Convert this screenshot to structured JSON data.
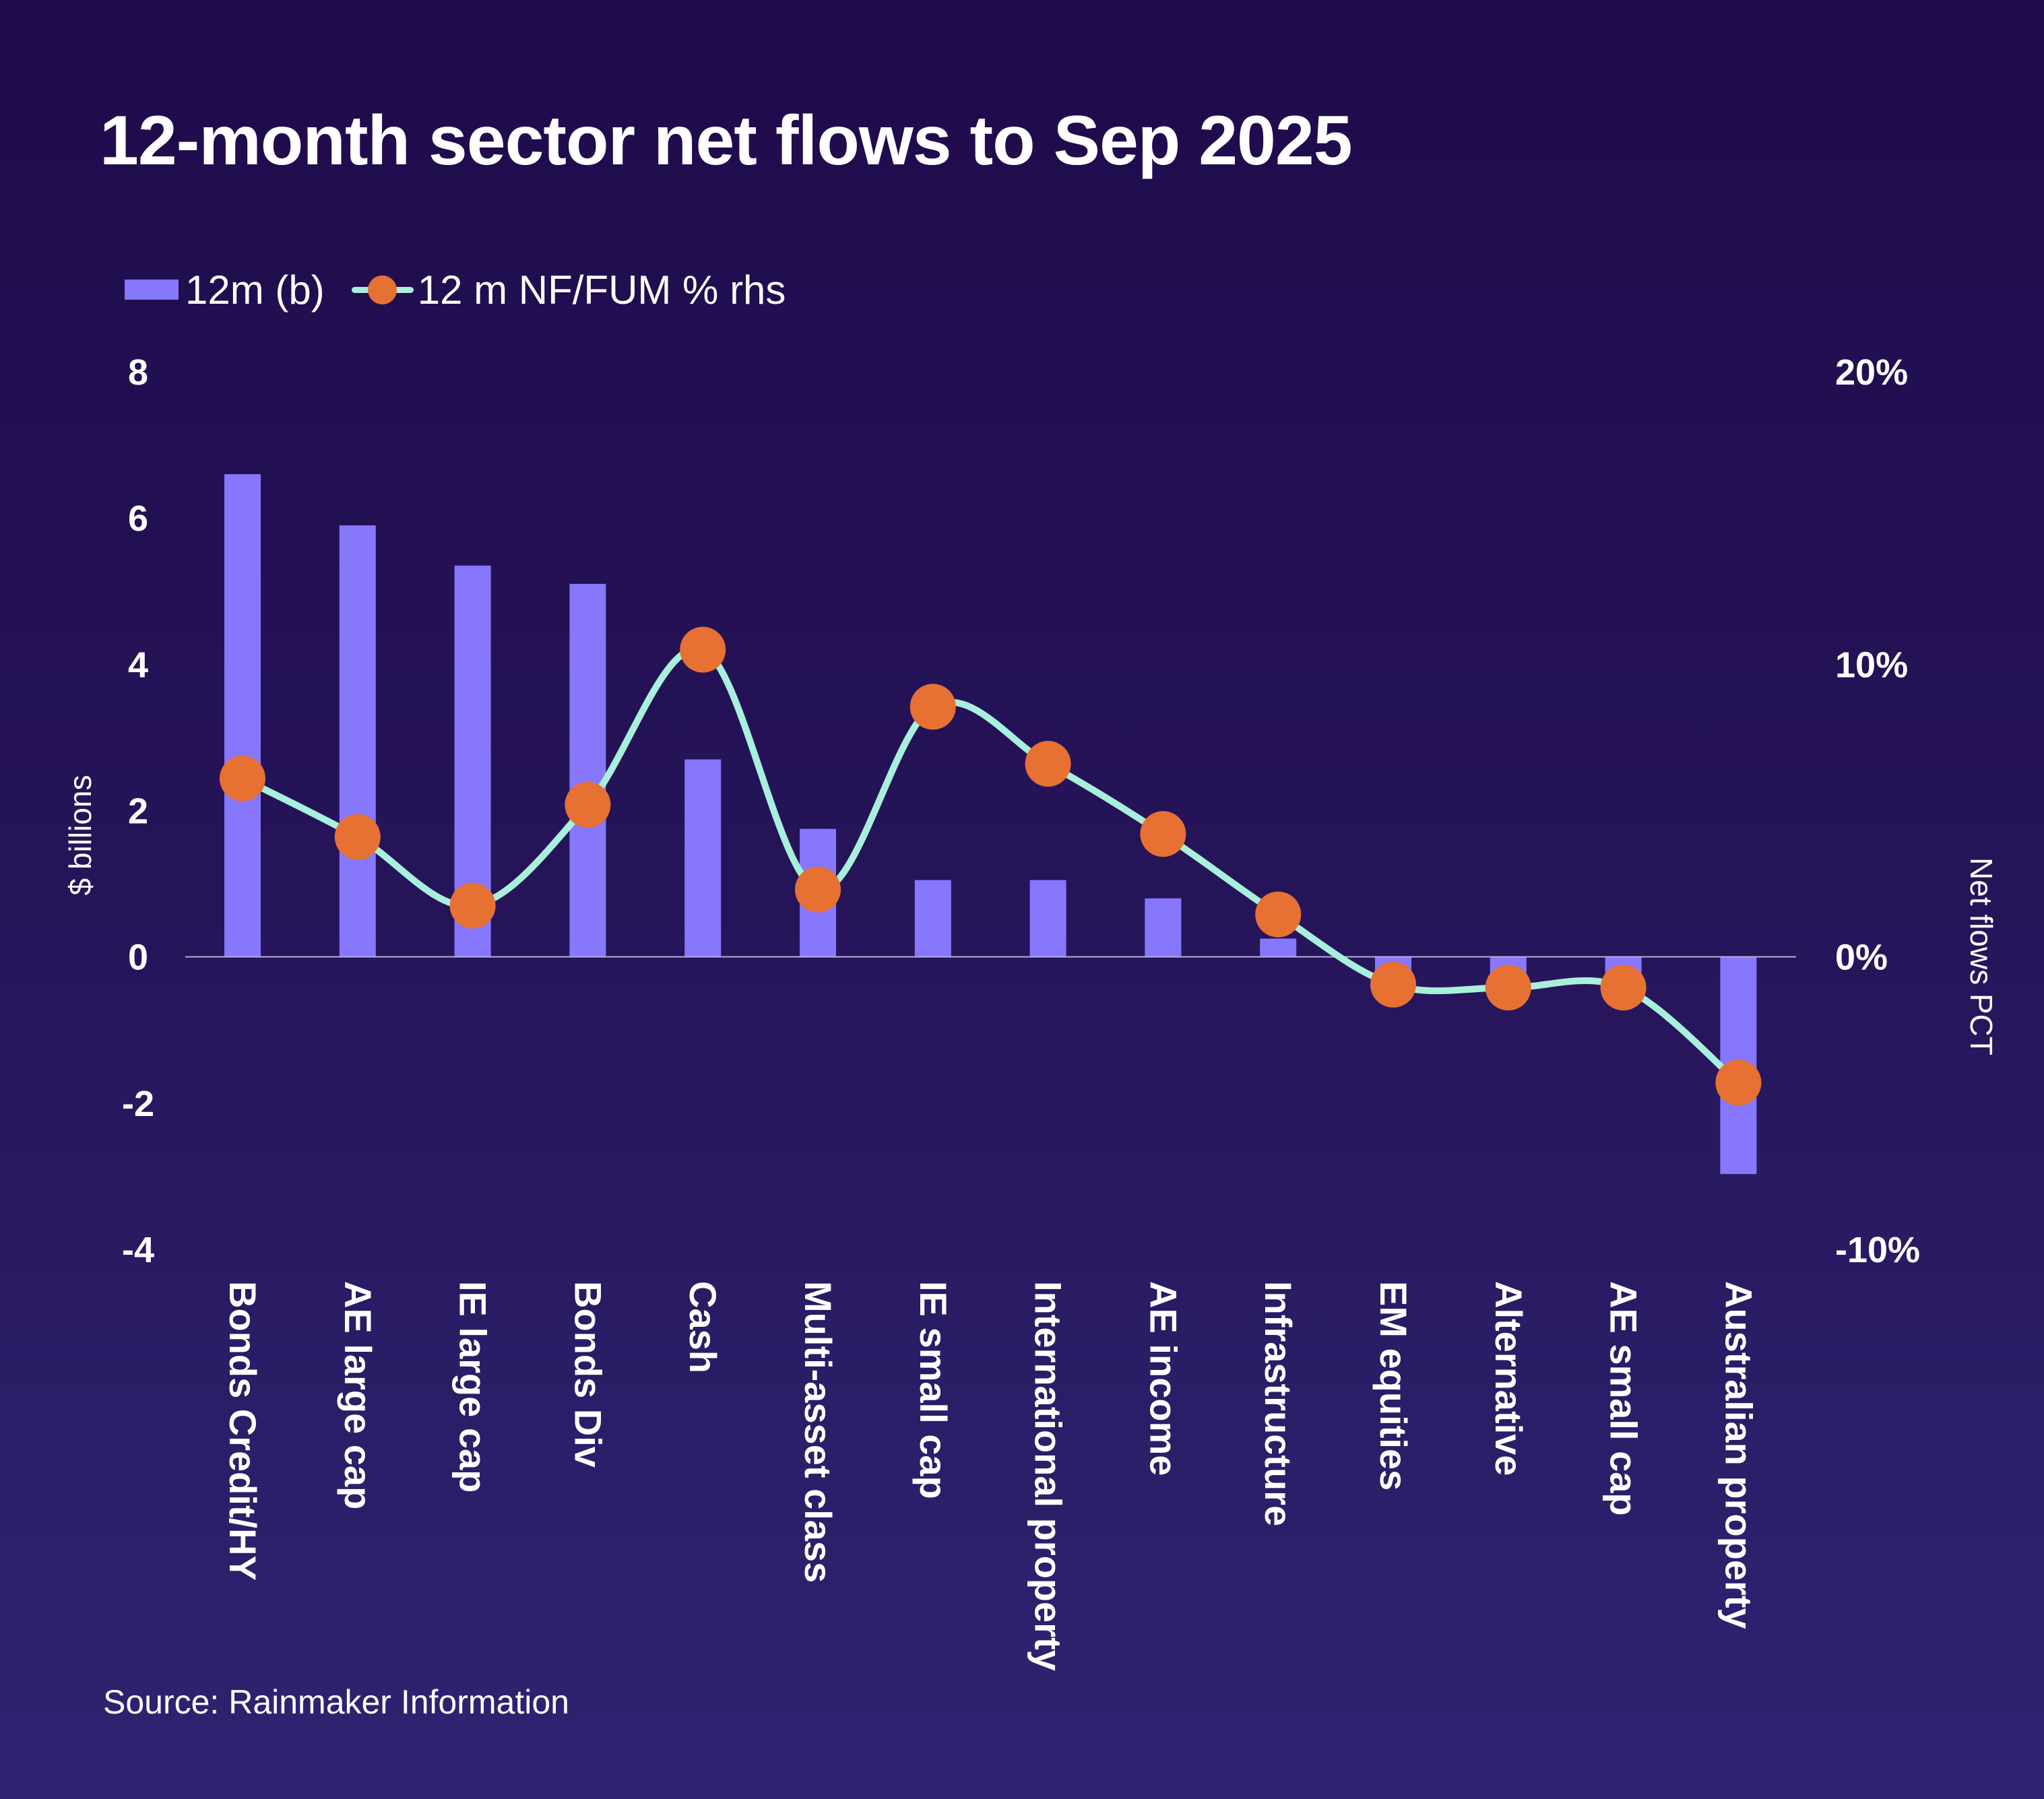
{
  "title": "12-month sector net flows to Sep 2025",
  "source": "Source: Rainmaker Information",
  "colors": {
    "bar": "#8677fd",
    "line": "#a8f0dc",
    "marker": "#e77133",
    "zero_line": "#b8aed8",
    "text": "#ffffff"
  },
  "chart_data": {
    "type": "bar+line",
    "title": "12-month sector net flows to Sep 2025",
    "categories": [
      "Bonds Credit/HY",
      "AE large cap",
      "IE large cap",
      "Bonds Div",
      "Cash",
      "Multi-asset class",
      "IE small cap",
      "International property",
      "AE income",
      "Infrastructure",
      "EM equities",
      "Alternative",
      "AE small cap",
      "Australian property"
    ],
    "series": [
      {
        "name": "12m (b)",
        "type": "bar",
        "axis": "left",
        "values": [
          6.6,
          5.9,
          5.35,
          5.1,
          2.7,
          1.75,
          1.05,
          1.05,
          0.8,
          0.25,
          -0.4,
          -0.4,
          -0.4,
          -2.97
        ]
      },
      {
        "name": "12 m NF/FUM % rhs",
        "type": "line",
        "axis": "right",
        "smooth": true,
        "values": [
          6.1,
          4.1,
          1.75,
          5.2,
          10.5,
          2.3,
          8.55,
          6.6,
          4.2,
          1.45,
          -0.95,
          -1.05,
          -1.05,
          -4.3
        ]
      }
    ],
    "legend": [
      "12m (b)",
      "12 m NF/FUM % rhs"
    ],
    "legend_position": "top-left",
    "ylabel": "$ billions",
    "ylim": [
      -4,
      8
    ],
    "yticks": [
      8,
      6,
      4,
      2,
      0,
      -2,
      -4
    ],
    "ytick_labels": [
      "8",
      "6",
      "4",
      "2",
      "0",
      "-2",
      "-4"
    ],
    "y2label": "Net flows PCT",
    "y2lim": [
      -10,
      20
    ],
    "y2ticks": [
      20,
      10,
      0,
      -10
    ],
    "y2tick_labels": [
      "20%",
      "10%",
      "0%",
      "-10%"
    ],
    "xlabel": "",
    "grid": false
  }
}
